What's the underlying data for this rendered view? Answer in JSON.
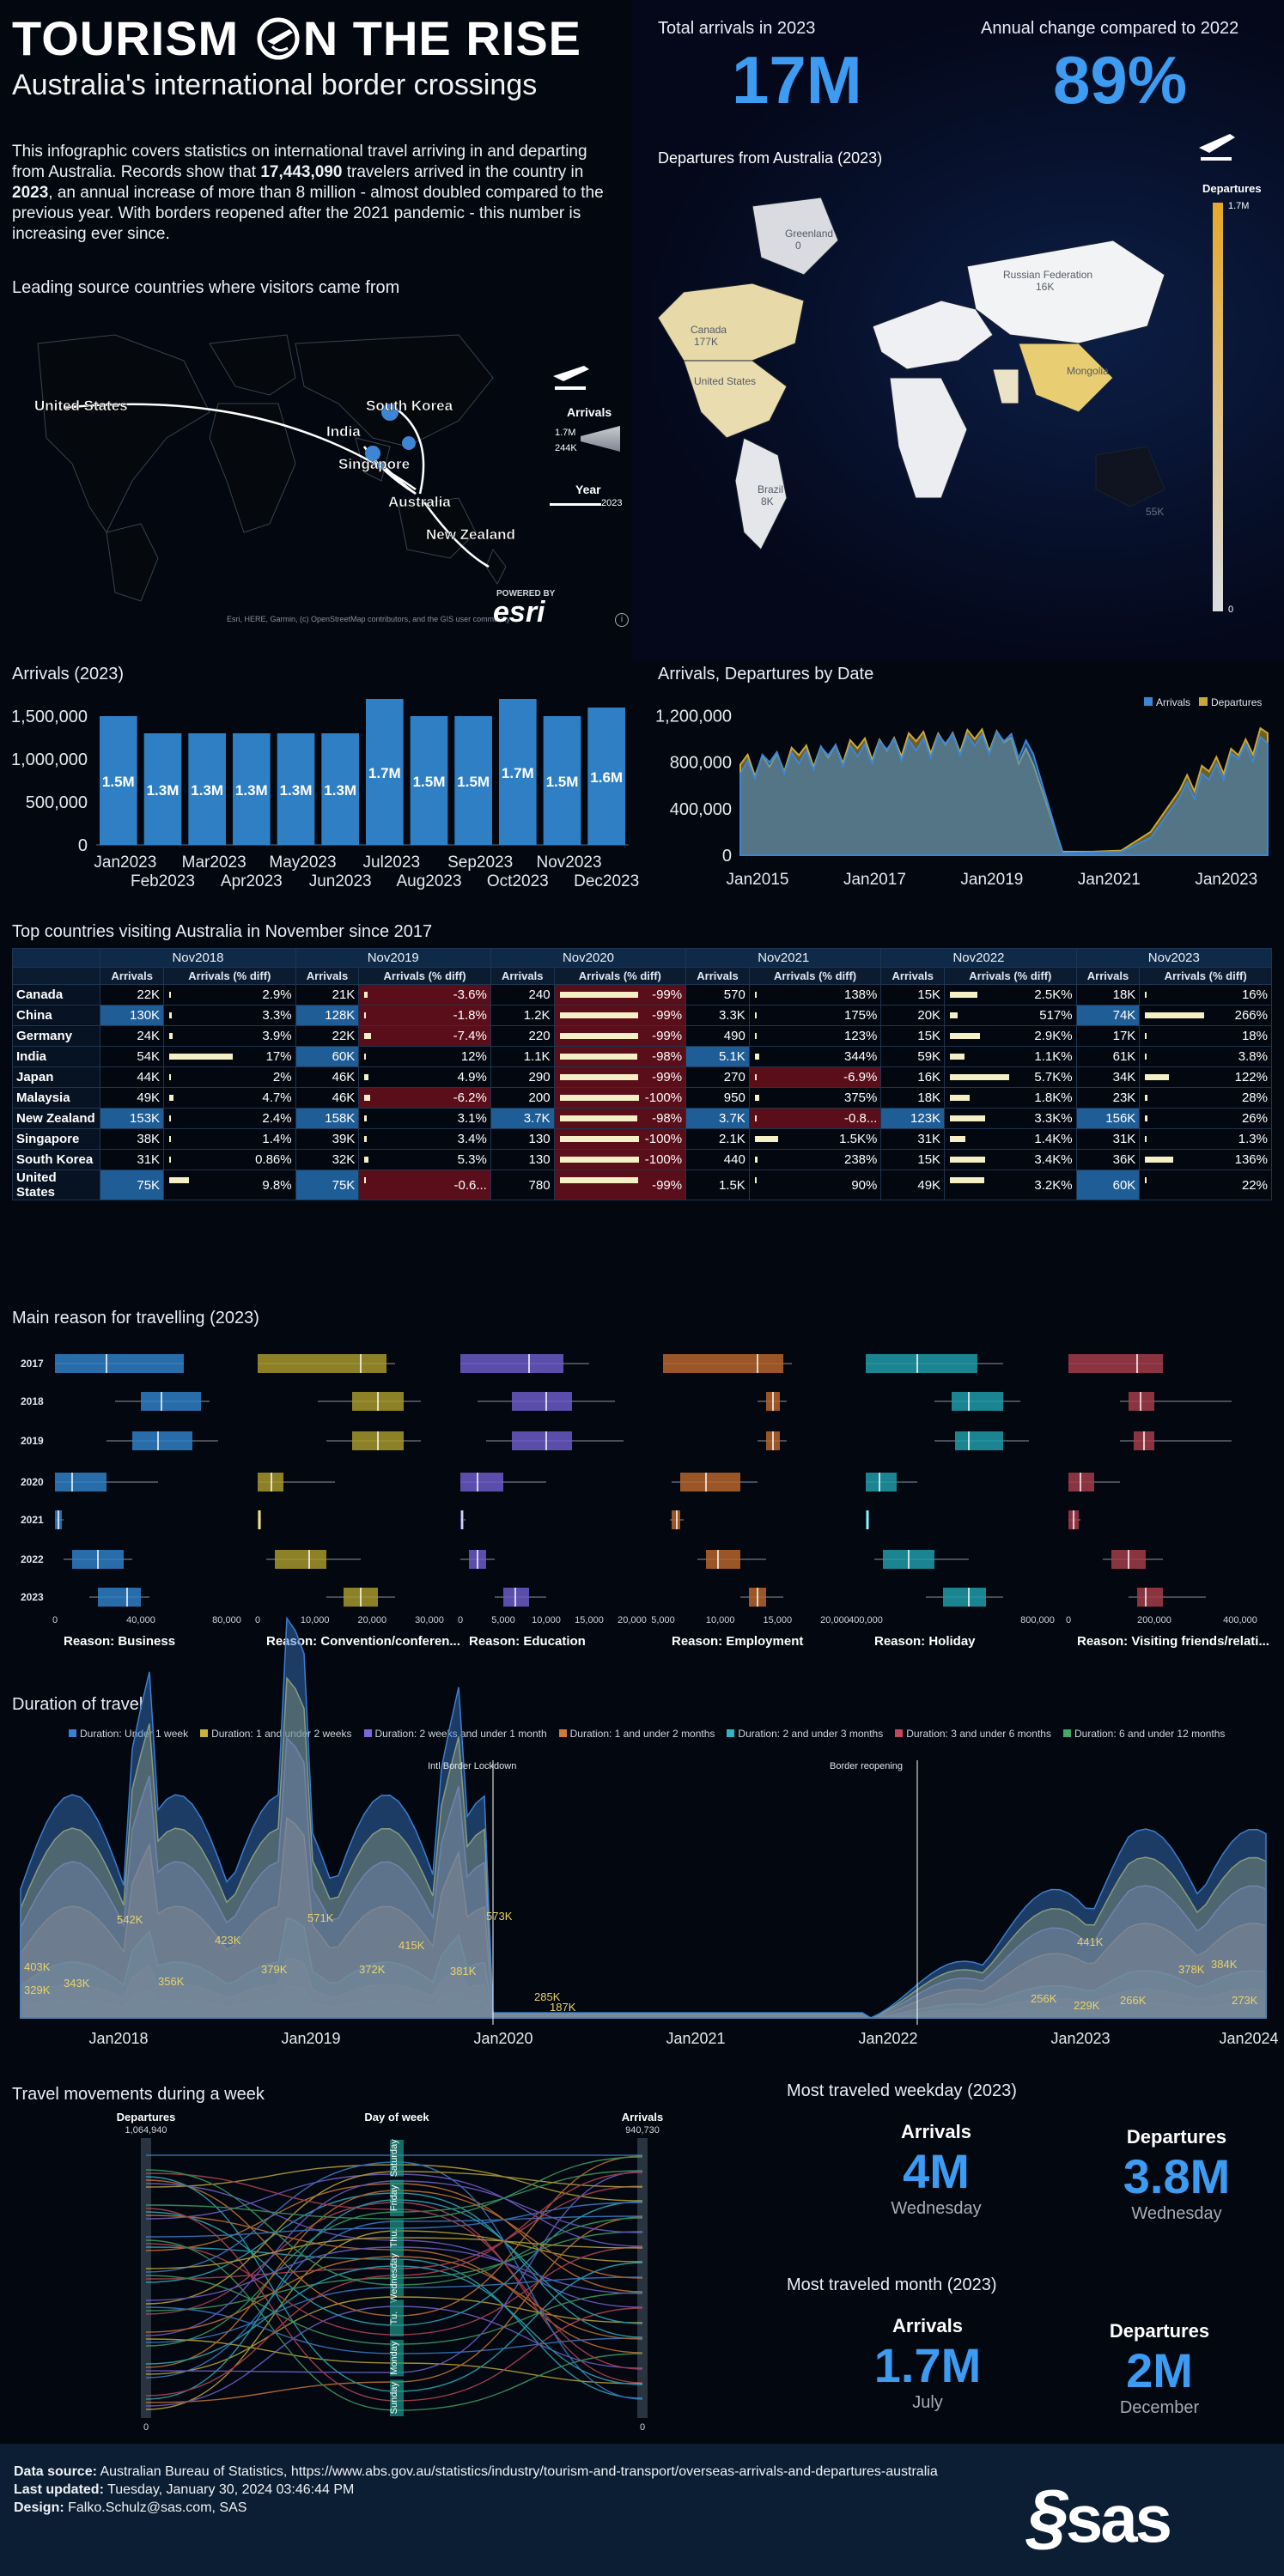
{
  "header": {
    "title_left": "TOURISM",
    "title_o": "O",
    "title_right": "N THE RISE",
    "subtitle": "Australia's international border crossings"
  },
  "intro": {
    "p1": "This infographic covers statistics on international travel arriving in and departing from Australia. Records show that ",
    "p2": "17,443,090",
    "p3": " travelers arrived in the country in ",
    "p4": "2023",
    "p5": ", an annual increase of more than 8 million - almost doubled compared to the previous year. With borders reopened after the 2021 pandemic - this number is increasing ever since."
  },
  "kpis": {
    "arrivals_label": "Total arrivals in 2023",
    "arrivals_value": "17M",
    "change_label": "Annual change compared to 2022",
    "change_value": "89%"
  },
  "source_map": {
    "title": "Leading source countries where visitors came from",
    "labels": [
      "United States",
      "South Korea",
      "India",
      "Singapore",
      "Australia",
      "New Zealand"
    ],
    "legend_arrivals": "Arrivals",
    "legend_max": "1.7M",
    "legend_min": "244K",
    "legend_year": "Year",
    "legend_year_val": "2023",
    "attribution": "Esri, HERE, Garmin, (c) OpenStreetMap contributors, and the GIS user community",
    "powered_by": "POWERED BY",
    "esri": "esri"
  },
  "dep_map": {
    "title": "Departures from Australia (2023)",
    "legend_title": "Departures",
    "legend_max": "1.7M",
    "legend_min": "0",
    "countries": [
      {
        "name": "Greenland",
        "value": "0"
      },
      {
        "name": "Canada",
        "value": "177K"
      },
      {
        "name": "United States",
        "value": ""
      },
      {
        "name": "Russian Federation",
        "value": "16K"
      },
      {
        "name": "Brazil",
        "value": "8K"
      },
      {
        "name": "Mongolia",
        "value": ""
      }
    ],
    "oceania_value": "55K"
  },
  "arrivals_2023": {
    "title": "Arrivals (2023)",
    "y_ticks": [
      "1,500,000",
      "1,000,000",
      "500,000",
      "0"
    ],
    "x_top": [
      "Jan2023",
      "Mar2023",
      "May2023",
      "Jul2023",
      "Sep2023",
      "Nov2023"
    ],
    "x_bottom": [
      "Feb2023",
      "Apr2023",
      "Jun2023",
      "Aug2023",
      "Oct2023",
      "Dec2023"
    ]
  },
  "arr_dep": {
    "title": "Arrivals, Departures by Date",
    "legend": [
      "Arrivals",
      "Departures"
    ],
    "y_ticks": [
      "1,200,000",
      "800,000",
      "400,000",
      "0"
    ],
    "x_ticks": [
      "Jan2015",
      "Jan2017",
      "Jan2019",
      "Jan2021",
      "Jan2023"
    ]
  },
  "top_countries": {
    "title": "Top countries visiting Australia in November since 2017",
    "periods": [
      "Nov2018",
      "Nov2019",
      "Nov2020",
      "Nov2021",
      "Nov2022",
      "Nov2023"
    ],
    "col_arrivals": "Arrivals",
    "col_diff": "Arrivals (% diff)",
    "rows": [
      {
        "country": "Canada",
        "cells": [
          [
            "22K",
            "2.9%",
            0.02
          ],
          [
            "21K",
            "-3.6%",
            0.04
          ],
          [
            "240",
            "-99%",
            0.99
          ],
          [
            "570",
            "138%",
            0.02
          ],
          [
            "15K",
            "2.5K%",
            0.35
          ],
          [
            "18K",
            "16%",
            0.02
          ]
        ]
      },
      {
        "country": "China",
        "cells": [
          [
            "130K",
            "3.3%",
            0.03
          ],
          [
            "128K",
            "-1.8%",
            0.02
          ],
          [
            "1.2K",
            "-99%",
            0.99
          ],
          [
            "3.3K",
            "175%",
            0.02
          ],
          [
            "20K",
            "517%",
            0.1
          ],
          [
            "74K",
            "266%",
            0.75
          ]
        ]
      },
      {
        "country": "Germany",
        "cells": [
          [
            "24K",
            "3.9%",
            0.04
          ],
          [
            "22K",
            "-7.4%",
            0.08
          ],
          [
            "220",
            "-99%",
            0.99
          ],
          [
            "490",
            "123%",
            0.02
          ],
          [
            "15K",
            "2.9K%",
            0.38
          ],
          [
            "17K",
            "18%",
            0.02
          ]
        ]
      },
      {
        "country": "India",
        "cells": [
          [
            "54K",
            "17%",
            0.8
          ],
          [
            "60K",
            "12%",
            0.02
          ],
          [
            "1.1K",
            "-98%",
            0.98
          ],
          [
            "5.1K",
            "344%",
            0.06
          ],
          [
            "59K",
            "1.1K%",
            0.18
          ],
          [
            "61K",
            "3.8%",
            0.02
          ]
        ]
      },
      {
        "country": "Japan",
        "cells": [
          [
            "44K",
            "2%",
            0.02
          ],
          [
            "46K",
            "4.9%",
            0.05
          ],
          [
            "290",
            "-99%",
            0.99
          ],
          [
            "270",
            "-6.9%",
            0.02
          ],
          [
            "16K",
            "5.7K%",
            0.75
          ],
          [
            "34K",
            "122%",
            0.3
          ]
        ]
      },
      {
        "country": "Malaysia",
        "cells": [
          [
            "49K",
            "4.7%",
            0.05
          ],
          [
            "46K",
            "-6.2%",
            0.07
          ],
          [
            "200",
            "-100%",
            1.0
          ],
          [
            "950",
            "375%",
            0.06
          ],
          [
            "18K",
            "1.8K%",
            0.25
          ],
          [
            "23K",
            "28%",
            0.03
          ]
        ]
      },
      {
        "country": "New Zealand",
        "cells": [
          [
            "153K",
            "2.4%",
            0.02
          ],
          [
            "158K",
            "3.1%",
            0.03
          ],
          [
            "3.7K",
            "-98%",
            0.98
          ],
          [
            "3.7K",
            "-0.8...",
            0.02
          ],
          [
            "123K",
            "3.3K%",
            0.45
          ],
          [
            "156K",
            "26%",
            0.03
          ]
        ]
      },
      {
        "country": "Singapore",
        "cells": [
          [
            "38K",
            "1.4%",
            0.01
          ],
          [
            "39K",
            "3.4%",
            0.03
          ],
          [
            "130",
            "-100%",
            1.0
          ],
          [
            "2.1K",
            "1.5K%",
            0.3
          ],
          [
            "31K",
            "1.4K%",
            0.2
          ],
          [
            "31K",
            "1.3%",
            0.01
          ]
        ]
      },
      {
        "country": "South Korea",
        "cells": [
          [
            "31K",
            "0.86%",
            0.01
          ],
          [
            "32K",
            "5.3%",
            0.05
          ],
          [
            "130",
            "-100%",
            1.0
          ],
          [
            "440",
            "238%",
            0.03
          ],
          [
            "15K",
            "3.4K%",
            0.45
          ],
          [
            "36K",
            "136%",
            0.35
          ]
        ]
      },
      {
        "country": "United States",
        "cells": [
          [
            "75K",
            "9.8%",
            0.25
          ],
          [
            "75K",
            "-0.6...",
            0.02
          ],
          [
            "780",
            "-99%",
            0.99
          ],
          [
            "1.5K",
            "90%",
            0.01
          ],
          [
            "49K",
            "3.2K%",
            0.43
          ],
          [
            "60K",
            "22%",
            0.02
          ]
        ]
      }
    ]
  },
  "reasons": {
    "title": "Main reason for travelling (2023)",
    "years": [
      "2017",
      "2018",
      "2019",
      "2020",
      "2021",
      "2022",
      "2023"
    ],
    "panels": [
      {
        "label": "Reason: Business",
        "ticks": [
          "0",
          "40,000",
          "80,000"
        ],
        "color": "#2f7fc4"
      },
      {
        "label": "Reason: Convention/conferen...",
        "ticks": [
          "0",
          "10,000",
          "20,000",
          "30,000"
        ],
        "color": "#a6962b"
      },
      {
        "label": "Reason: Education",
        "ticks": [
          "0",
          "5,000",
          "10,000",
          "15,000",
          "20,000"
        ],
        "color": "#6b5bc7"
      },
      {
        "label": "Reason: Employment",
        "ticks": [
          "5,000",
          "10,000",
          "15,000",
          "20,000"
        ],
        "color": "#b5642a"
      },
      {
        "label": "Reason: Holiday",
        "ticks": [
          "400,000",
          "800,000"
        ],
        "color": "#1e9aa8"
      },
      {
        "label": "Reason: Visiting friends/relati...",
        "ticks": [
          "0",
          "200,000",
          "400,000"
        ],
        "color": "#a23b4a"
      }
    ]
  },
  "duration": {
    "title": "Duration of travel",
    "legend": [
      {
        "label": "Duration: Under 1 week",
        "color": "#3b7fd0"
      },
      {
        "label": "Duration: 1 and under 2 weeks",
        "color": "#c9b23a"
      },
      {
        "label": "Duration: 2 weeks and under 1 month",
        "color": "#7a66d8"
      },
      {
        "label": "Duration: 1 and under 2 months",
        "color": "#d07a36"
      },
      {
        "label": "Duration: 2 and under 3 months",
        "color": "#2fb6c4"
      },
      {
        "label": "Duration: 3 and under 6 months",
        "color": "#c0485a"
      },
      {
        "label": "Duration: 6 and under 12 months",
        "color": "#3fa86a"
      }
    ],
    "annotations": [
      "Intl Border Lockdown",
      "Border reopening"
    ],
    "x_ticks": [
      "Jan2018",
      "Jan2019",
      "Jan2020",
      "Jan2021",
      "Jan2022",
      "Jan2023",
      "Jan2024"
    ],
    "peak_labels": [
      "403K",
      "329K",
      "343K",
      "542K",
      "356K",
      "423K",
      "379K",
      "571K",
      "372K",
      "415K",
      "381K",
      "573K",
      "285K",
      "187K",
      "441K",
      "378K",
      "384K",
      "256K",
      "229K",
      "266K",
      "273K"
    ]
  },
  "week": {
    "title": "Travel movements during a week",
    "dep_label": "Departures",
    "dep_max": "1,064,940",
    "day_label": "Day of week",
    "arr_label": "Arrivals",
    "arr_max": "940,730",
    "days": [
      "Saturday",
      "Friday",
      "Thu.",
      "Wednesday",
      "Tu.",
      "Monday",
      "Sunday"
    ],
    "zero": "0"
  },
  "weekday": {
    "title": "Most traveled weekday (2023)",
    "arr_label": "Arrivals",
    "arr_value": "4M",
    "arr_sub": "Wednesday",
    "dep_label": "Departures",
    "dep_value": "3.8M",
    "dep_sub": "Wednesday"
  },
  "month": {
    "title": "Most traveled month (2023)",
    "arr_label": "Arrivals",
    "arr_value": "1.7M",
    "arr_sub": "July",
    "dep_label": "Departures",
    "dep_value": "2M",
    "dep_sub": "December"
  },
  "footer": {
    "source_label": "Data source:",
    "source_text": " Australian Bureau of Statistics, https://www.abs.gov.au/statistics/industry/tourism-and-transport/overseas-arrivals-and-departures-australia",
    "updated_label": "Last updated:",
    "updated_text": " Tuesday, January 30, 2024 03:46:44 PM",
    "design_label": "Design:",
    "design_text": " Falko.Schulz@sas.com, SAS",
    "logo": "sas"
  },
  "chart_data": [
    {
      "type": "bar",
      "title": "Arrivals (2023)",
      "categories": [
        "Jan2023",
        "Feb2023",
        "Mar2023",
        "Apr2023",
        "May2023",
        "Jun2023",
        "Jul2023",
        "Aug2023",
        "Sep2023",
        "Oct2023",
        "Nov2023",
        "Dec2023"
      ],
      "values": [
        1500000,
        1300000,
        1300000,
        1300000,
        1300000,
        1300000,
        1700000,
        1500000,
        1500000,
        1700000,
        1500000,
        1600000
      ],
      "labels": [
        "1.5M",
        "1.3M",
        "1.3M",
        "1.3M",
        "1.3M",
        "1.3M",
        "1.7M",
        "1.5M",
        "1.5M",
        "1.7M",
        "1.5M",
        "1.6M"
      ],
      "ylim": [
        0,
        1700000
      ],
      "color": "#2f7fc4"
    },
    {
      "type": "area",
      "title": "Arrivals, Departures by Date",
      "x": [
        "Jan2015",
        "Jul2015",
        "Jan2016",
        "Jul2016",
        "Jan2017",
        "Jul2017",
        "Jan2018",
        "Jul2018",
        "Jan2019",
        "Jul2019",
        "Jan2020",
        "Apr2020",
        "Jan2021",
        "Jul2021",
        "Jan2022",
        "Jul2022",
        "Jan2023",
        "Jul2023",
        "Dec2023"
      ],
      "series": [
        {
          "name": "Arrivals",
          "color": "#3d86d6",
          "values": [
            700000,
            800000,
            790000,
            860000,
            850000,
            910000,
            900000,
            960000,
            940000,
            980000,
            870000,
            20000,
            25000,
            30000,
            150000,
            500000,
            650000,
            830000,
            960000
          ]
        },
        {
          "name": "Departures",
          "color": "#c9a83a",
          "values": [
            780000,
            760000,
            860000,
            840000,
            920000,
            900000,
            980000,
            950000,
            1000000,
            970000,
            780000,
            30000,
            30000,
            40000,
            200000,
            560000,
            720000,
            860000,
            1050000
          ]
        }
      ],
      "ylim": [
        0,
        1300000
      ]
    }
  ]
}
